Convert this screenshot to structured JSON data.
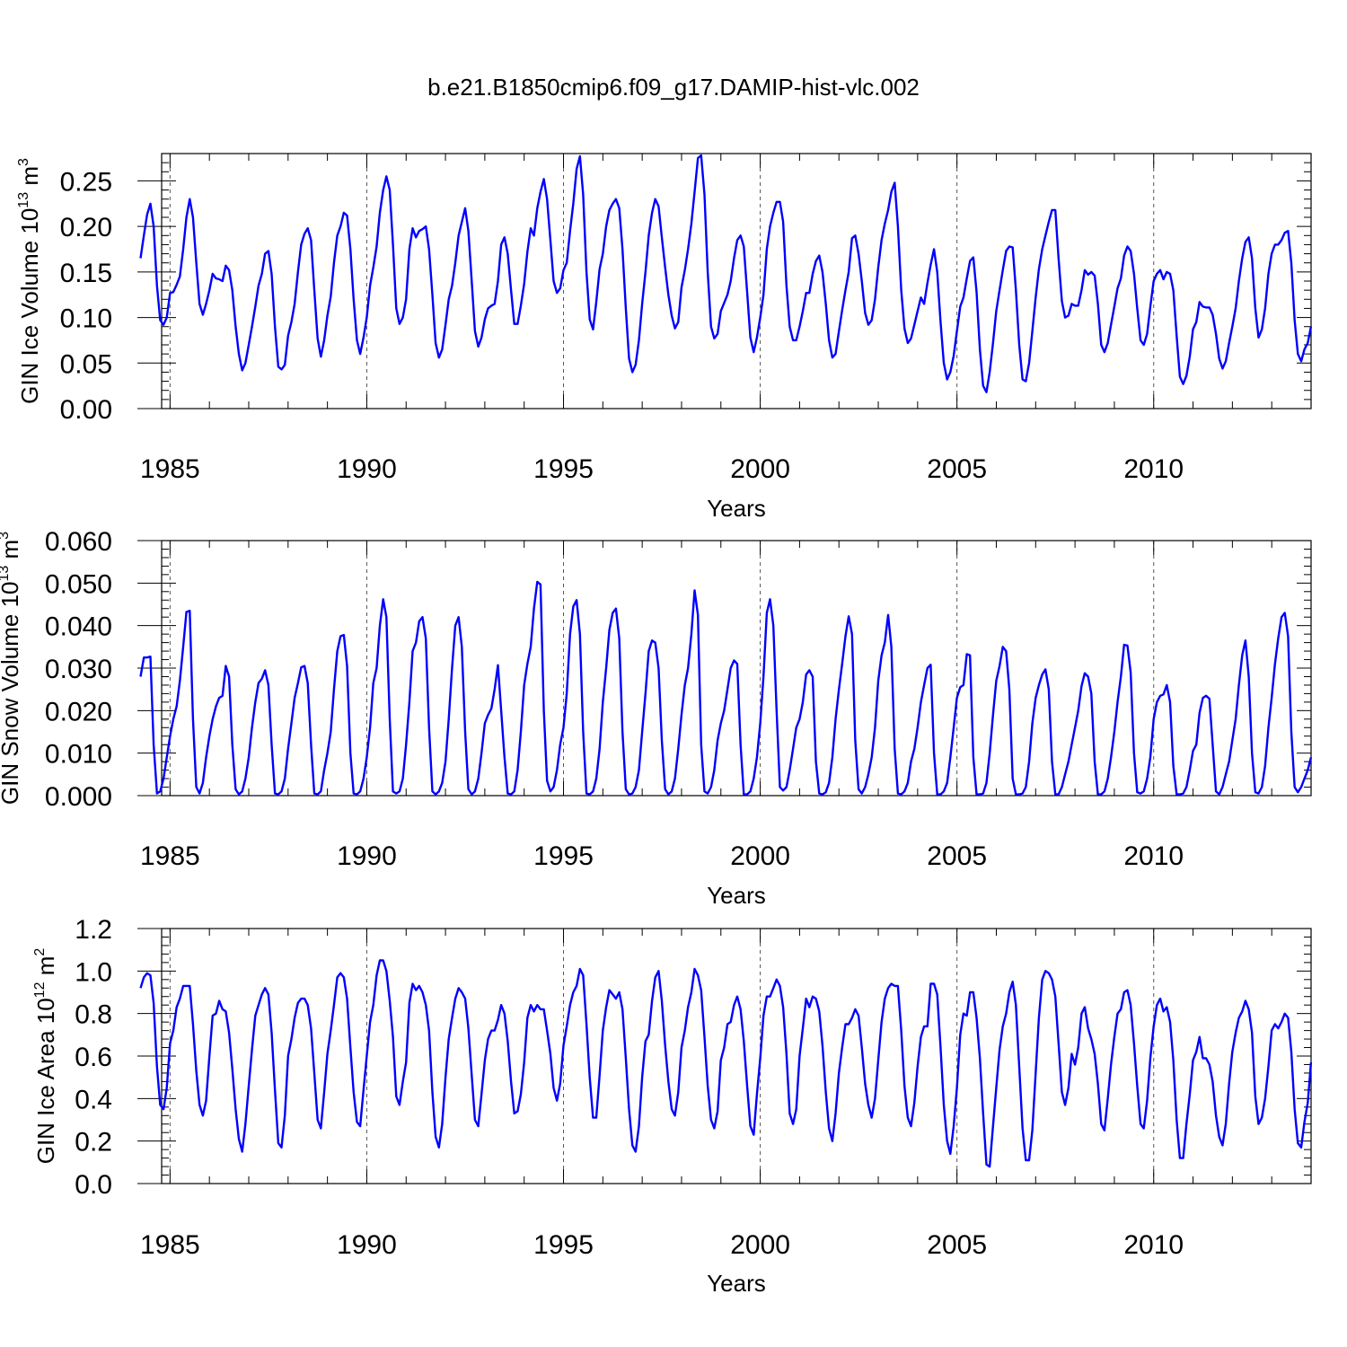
{
  "title": "b.e21.B1850cmip6.f09_g17.DAMIP-hist-vlc.002",
  "colors": {
    "series": "#0000ff",
    "axis": "#000000",
    "refline": "#555555"
  },
  "chart_data": [
    {
      "type": "line",
      "name": "ice-volume",
      "title": "b.e21.B1850cmip6.f09_g17.DAMIP-hist-vlc.002",
      "xlabel": "Years",
      "ylabel_main": "GIN Ice Volume 10",
      "ylabel_exp": "13",
      "ylabel_unit": " m",
      "ylabel_unit_exp": "3",
      "xlim": [
        1984.17,
        2014.0
      ],
      "ylim": [
        0.0,
        0.28
      ],
      "xticks": [
        1985,
        1990,
        1995,
        2000,
        2005,
        2010
      ],
      "xtick_labels": [
        "1985",
        "1990",
        "1995",
        "2000",
        "2005",
        "2010"
      ],
      "yticks": [
        0.0,
        0.05,
        0.1,
        0.15,
        0.2,
        0.25
      ],
      "ytick_labels": [
        "0.00",
        "0.05",
        "0.10",
        "0.15",
        "0.20",
        "0.25"
      ],
      "ref_lines_x": [
        1985,
        1990,
        1995,
        2000,
        2005,
        2010
      ],
      "x_start": 1984.0,
      "x_step": 0.08333,
      "values": [
        0.14,
        0.165,
        0.19,
        0.213,
        0.225,
        0.2,
        0.135,
        0.097,
        0.092,
        0.1,
        0.127,
        0.128,
        0.136,
        0.145,
        0.175,
        0.21,
        0.23,
        0.21,
        0.16,
        0.115,
        0.103,
        0.115,
        0.13,
        0.148,
        0.143,
        0.142,
        0.14,
        0.157,
        0.152,
        0.13,
        0.09,
        0.06,
        0.042,
        0.05,
        0.07,
        0.09,
        0.112,
        0.135,
        0.148,
        0.17,
        0.173,
        0.148,
        0.09,
        0.046,
        0.043,
        0.048,
        0.08,
        0.095,
        0.115,
        0.15,
        0.18,
        0.192,
        0.198,
        0.185,
        0.13,
        0.077,
        0.057,
        0.075,
        0.102,
        0.123,
        0.16,
        0.19,
        0.2,
        0.215,
        0.212,
        0.175,
        0.12,
        0.075,
        0.06,
        0.078,
        0.1,
        0.135,
        0.155,
        0.178,
        0.215,
        0.24,
        0.255,
        0.24,
        0.18,
        0.11,
        0.093,
        0.1,
        0.12,
        0.175,
        0.198,
        0.188,
        0.195,
        0.197,
        0.2,
        0.175,
        0.125,
        0.072,
        0.056,
        0.065,
        0.092,
        0.12,
        0.135,
        0.16,
        0.19,
        0.205,
        0.22,
        0.195,
        0.14,
        0.085,
        0.068,
        0.078,
        0.098,
        0.11,
        0.113,
        0.115,
        0.14,
        0.18,
        0.188,
        0.17,
        0.13,
        0.093,
        0.093,
        0.113,
        0.137,
        0.172,
        0.198,
        0.19,
        0.22,
        0.238,
        0.252,
        0.23,
        0.185,
        0.14,
        0.127,
        0.132,
        0.152,
        0.16,
        0.195,
        0.225,
        0.263,
        0.277,
        0.235,
        0.15,
        0.098,
        0.087,
        0.117,
        0.153,
        0.17,
        0.2,
        0.218,
        0.225,
        0.23,
        0.22,
        0.175,
        0.11,
        0.055,
        0.04,
        0.048,
        0.075,
        0.115,
        0.15,
        0.19,
        0.215,
        0.23,
        0.222,
        0.188,
        0.155,
        0.125,
        0.102,
        0.088,
        0.095,
        0.133,
        0.152,
        0.175,
        0.203,
        0.238,
        0.275,
        0.278,
        0.235,
        0.15,
        0.09,
        0.077,
        0.082,
        0.107,
        0.116,
        0.125,
        0.14,
        0.165,
        0.185,
        0.19,
        0.178,
        0.128,
        0.078,
        0.062,
        0.078,
        0.1,
        0.125,
        0.175,
        0.2,
        0.215,
        0.227,
        0.227,
        0.205,
        0.135,
        0.09,
        0.075,
        0.075,
        0.09,
        0.107,
        0.127,
        0.127,
        0.148,
        0.162,
        0.168,
        0.15,
        0.115,
        0.075,
        0.056,
        0.06,
        0.085,
        0.108,
        0.13,
        0.15,
        0.187,
        0.19,
        0.17,
        0.14,
        0.105,
        0.092,
        0.097,
        0.12,
        0.155,
        0.185,
        0.203,
        0.218,
        0.238,
        0.248,
        0.2,
        0.13,
        0.088,
        0.072,
        0.077,
        0.092,
        0.107,
        0.122,
        0.115,
        0.138,
        0.158,
        0.175,
        0.15,
        0.095,
        0.05,
        0.032,
        0.04,
        0.058,
        0.085,
        0.112,
        0.122,
        0.143,
        0.162,
        0.166,
        0.128,
        0.065,
        0.025,
        0.018,
        0.04,
        0.072,
        0.107,
        0.13,
        0.152,
        0.173,
        0.178,
        0.177,
        0.13,
        0.07,
        0.032,
        0.03,
        0.05,
        0.085,
        0.122,
        0.153,
        0.175,
        0.19,
        0.205,
        0.218,
        0.218,
        0.165,
        0.118,
        0.1,
        0.102,
        0.115,
        0.113,
        0.113,
        0.13,
        0.152,
        0.147,
        0.15,
        0.146,
        0.115,
        0.07,
        0.062,
        0.072,
        0.092,
        0.112,
        0.132,
        0.143,
        0.168,
        0.178,
        0.173,
        0.148,
        0.11,
        0.075,
        0.07,
        0.082,
        0.112,
        0.14,
        0.148,
        0.152,
        0.142,
        0.15,
        0.148,
        0.13,
        0.08,
        0.035,
        0.027,
        0.036,
        0.057,
        0.087,
        0.095,
        0.117,
        0.112,
        0.111,
        0.111,
        0.103,
        0.082,
        0.055,
        0.044,
        0.052,
        0.072,
        0.09,
        0.11,
        0.14,
        0.165,
        0.183,
        0.188,
        0.165,
        0.11,
        0.078,
        0.087,
        0.11,
        0.148,
        0.17,
        0.18,
        0.18,
        0.185,
        0.193,
        0.195,
        0.16,
        0.097,
        0.06,
        0.052,
        0.065,
        0.072,
        0.09
      ]
    },
    {
      "type": "line",
      "name": "snow-volume",
      "xlabel": "Years",
      "ylabel_main": "GIN Snow Volume 10",
      "ylabel_exp": "13",
      "ylabel_unit": " m",
      "ylabel_unit_exp": "3",
      "xlim": [
        1984.17,
        2014.0
      ],
      "ylim": [
        0.0,
        0.06
      ],
      "xticks": [
        1985,
        1990,
        1995,
        2000,
        2005,
        2010
      ],
      "xtick_labels": [
        "1985",
        "1990",
        "1995",
        "2000",
        "2005",
        "2010"
      ],
      "yticks": [
        0.0,
        0.01,
        0.02,
        0.03,
        0.04,
        0.05,
        0.06
      ],
      "ytick_labels": [
        "0.000",
        "0.010",
        "0.020",
        "0.030",
        "0.040",
        "0.050",
        "0.060"
      ],
      "ref_lines_x": [
        1985,
        1990,
        1995,
        2000,
        2005,
        2010
      ],
      "x_start": 1984.0,
      "x_step": 0.08333,
      "values": [
        0.02,
        0.028,
        0.0325,
        0.0325,
        0.0327,
        0.012,
        0.0005,
        0.001,
        0.004,
        0.009,
        0.014,
        0.018,
        0.021,
        0.027,
        0.035,
        0.0432,
        0.0435,
        0.018,
        0.002,
        0.0005,
        0.003,
        0.009,
        0.014,
        0.018,
        0.021,
        0.023,
        0.0235,
        0.0305,
        0.028,
        0.012,
        0.0015,
        0.0003,
        0.001,
        0.004,
        0.009,
        0.016,
        0.022,
        0.0265,
        0.0275,
        0.0295,
        0.026,
        0.012,
        0.0005,
        0.0003,
        0.001,
        0.004,
        0.011,
        0.017,
        0.023,
        0.0265,
        0.0302,
        0.0305,
        0.0265,
        0.012,
        0.0005,
        0.0003,
        0.001,
        0.006,
        0.01,
        0.015,
        0.025,
        0.034,
        0.0375,
        0.0378,
        0.0305,
        0.01,
        0.0005,
        0.0003,
        0.001,
        0.004,
        0.009,
        0.016,
        0.0265,
        0.03,
        0.04,
        0.0462,
        0.042,
        0.018,
        0.001,
        0.0005,
        0.001,
        0.004,
        0.012,
        0.022,
        0.034,
        0.036,
        0.041,
        0.042,
        0.037,
        0.016,
        0.001,
        0.0003,
        0.001,
        0.003,
        0.008,
        0.018,
        0.03,
        0.04,
        0.042,
        0.035,
        0.015,
        0.0015,
        0.0003,
        0.001,
        0.004,
        0.01,
        0.017,
        0.019,
        0.0205,
        0.025,
        0.0307,
        0.02,
        0.009,
        0.0005,
        0.0003,
        0.001,
        0.006,
        0.015,
        0.026,
        0.031,
        0.035,
        0.044,
        0.0503,
        0.0497,
        0.02,
        0.0035,
        0.001,
        0.002,
        0.006,
        0.012,
        0.016,
        0.024,
        0.038,
        0.0445,
        0.046,
        0.038,
        0.015,
        0.0005,
        0.0003,
        0.001,
        0.004,
        0.011,
        0.022,
        0.03,
        0.039,
        0.043,
        0.044,
        0.037,
        0.015,
        0.0015,
        0.0003,
        0.0005,
        0.002,
        0.006,
        0.015,
        0.024,
        0.034,
        0.0365,
        0.036,
        0.03,
        0.013,
        0.0015,
        0.0003,
        0.001,
        0.004,
        0.011,
        0.019,
        0.026,
        0.03,
        0.038,
        0.0483,
        0.0425,
        0.012,
        0.001,
        0.0005,
        0.002,
        0.006,
        0.013,
        0.017,
        0.02,
        0.025,
        0.03,
        0.0318,
        0.031,
        0.012,
        0.0003,
        0.0003,
        0.001,
        0.004,
        0.009,
        0.017,
        0.028,
        0.043,
        0.0462,
        0.04,
        0.02,
        0.002,
        0.0012,
        0.002,
        0.006,
        0.011,
        0.016,
        0.018,
        0.022,
        0.0285,
        0.0295,
        0.028,
        0.008,
        0.0005,
        0.0003,
        0.0008,
        0.003,
        0.009,
        0.018,
        0.025,
        0.031,
        0.0375,
        0.0422,
        0.038,
        0.013,
        0.0015,
        0.0005,
        0.002,
        0.005,
        0.009,
        0.016,
        0.027,
        0.033,
        0.036,
        0.0425,
        0.035,
        0.011,
        0.0005,
        0.0003,
        0.001,
        0.003,
        0.008,
        0.011,
        0.016,
        0.022,
        0.026,
        0.03,
        0.0308,
        0.01,
        0.0003,
        0.0003,
        0.001,
        0.003,
        0.009,
        0.016,
        0.023,
        0.0255,
        0.026,
        0.0333,
        0.033,
        0.009,
        0.0003,
        0.0003,
        0.0005,
        0.003,
        0.01,
        0.019,
        0.027,
        0.0305,
        0.035,
        0.034,
        0.025,
        0.004,
        0.0003,
        0.0003,
        0.0005,
        0.002,
        0.008,
        0.017,
        0.023,
        0.026,
        0.0285,
        0.0297,
        0.025,
        0.008,
        0.0003,
        0.0003,
        0.002,
        0.005,
        0.008,
        0.012,
        0.016,
        0.02,
        0.0258,
        0.0288,
        0.028,
        0.024,
        0.008,
        0.0003,
        0.0003,
        0.001,
        0.004,
        0.009,
        0.015,
        0.022,
        0.028,
        0.0355,
        0.0353,
        0.029,
        0.01,
        0.0008,
        0.0005,
        0.001,
        0.004,
        0.009,
        0.018,
        0.022,
        0.0235,
        0.0238,
        0.026,
        0.022,
        0.007,
        0.0003,
        0.0003,
        0.0005,
        0.002,
        0.006,
        0.0105,
        0.012,
        0.0195,
        0.023,
        0.0235,
        0.0228,
        0.012,
        0.001,
        0.0003,
        0.002,
        0.005,
        0.008,
        0.013,
        0.018,
        0.026,
        0.033,
        0.0365,
        0.028,
        0.01,
        0.0008,
        0.0005,
        0.002,
        0.007,
        0.016,
        0.023,
        0.031,
        0.037,
        0.042,
        0.043,
        0.0375,
        0.015,
        0.002,
        0.0008,
        0.002,
        0.004,
        0.006,
        0.009
      ]
    },
    {
      "type": "line",
      "name": "ice-area",
      "xlabel": "Years",
      "ylabel_main": "GIN Ice Area 10",
      "ylabel_exp": "12",
      "ylabel_unit": " m",
      "ylabel_unit_exp": "2",
      "xlim": [
        1984.17,
        2014.0
      ],
      "ylim": [
        0.0,
        1.2
      ],
      "xticks": [
        1985,
        1990,
        1995,
        2000,
        2005,
        2010
      ],
      "xtick_labels": [
        "1985",
        "1990",
        "1995",
        "2000",
        "2005",
        "2010"
      ],
      "yticks": [
        0.0,
        0.2,
        0.4,
        0.6,
        0.8,
        1.0,
        1.2
      ],
      "ytick_labels": [
        "0.0",
        "0.2",
        "0.4",
        "0.6",
        "0.8",
        "1.0",
        "1.2"
      ],
      "ref_lines_x": [
        1985,
        1990,
        1995,
        2000,
        2005,
        2010
      ],
      "x_start": 1984.0,
      "x_step": 0.08333,
      "values": [
        0.85,
        0.92,
        0.97,
        0.99,
        0.98,
        0.85,
        0.55,
        0.37,
        0.35,
        0.45,
        0.66,
        0.72,
        0.83,
        0.87,
        0.93,
        0.93,
        0.93,
        0.75,
        0.53,
        0.37,
        0.32,
        0.39,
        0.6,
        0.79,
        0.8,
        0.86,
        0.82,
        0.81,
        0.71,
        0.54,
        0.35,
        0.21,
        0.15,
        0.28,
        0.46,
        0.63,
        0.79,
        0.84,
        0.89,
        0.92,
        0.89,
        0.71,
        0.44,
        0.19,
        0.17,
        0.32,
        0.6,
        0.68,
        0.78,
        0.85,
        0.87,
        0.87,
        0.84,
        0.73,
        0.52,
        0.3,
        0.26,
        0.43,
        0.61,
        0.72,
        0.84,
        0.97,
        0.99,
        0.97,
        0.87,
        0.64,
        0.43,
        0.29,
        0.27,
        0.44,
        0.6,
        0.76,
        0.84,
        0.98,
        1.05,
        1.05,
        1.0,
        0.86,
        0.69,
        0.41,
        0.37,
        0.48,
        0.57,
        0.85,
        0.94,
        0.91,
        0.93,
        0.9,
        0.84,
        0.72,
        0.43,
        0.22,
        0.17,
        0.28,
        0.5,
        0.68,
        0.78,
        0.87,
        0.92,
        0.9,
        0.87,
        0.73,
        0.51,
        0.3,
        0.27,
        0.42,
        0.58,
        0.68,
        0.72,
        0.72,
        0.77,
        0.84,
        0.8,
        0.67,
        0.48,
        0.33,
        0.34,
        0.42,
        0.57,
        0.78,
        0.84,
        0.81,
        0.84,
        0.82,
        0.82,
        0.72,
        0.61,
        0.45,
        0.39,
        0.47,
        0.65,
        0.74,
        0.84,
        0.9,
        0.93,
        1.01,
        0.98,
        0.75,
        0.5,
        0.31,
        0.31,
        0.51,
        0.72,
        0.83,
        0.91,
        0.89,
        0.87,
        0.9,
        0.82,
        0.59,
        0.35,
        0.18,
        0.15,
        0.27,
        0.5,
        0.67,
        0.7,
        0.86,
        0.97,
        1.0,
        0.86,
        0.65,
        0.48,
        0.35,
        0.32,
        0.43,
        0.64,
        0.72,
        0.83,
        0.9,
        1.01,
        0.98,
        0.91,
        0.69,
        0.46,
        0.3,
        0.26,
        0.34,
        0.58,
        0.64,
        0.75,
        0.76,
        0.84,
        0.88,
        0.82,
        0.67,
        0.46,
        0.27,
        0.23,
        0.42,
        0.59,
        0.79,
        0.88,
        0.88,
        0.92,
        0.96,
        0.93,
        0.83,
        0.61,
        0.33,
        0.28,
        0.35,
        0.6,
        0.73,
        0.87,
        0.83,
        0.88,
        0.87,
        0.81,
        0.65,
        0.43,
        0.26,
        0.2,
        0.33,
        0.52,
        0.64,
        0.75,
        0.75,
        0.78,
        0.82,
        0.79,
        0.64,
        0.47,
        0.37,
        0.31,
        0.4,
        0.58,
        0.76,
        0.87,
        0.92,
        0.94,
        0.93,
        0.93,
        0.72,
        0.46,
        0.31,
        0.27,
        0.38,
        0.55,
        0.69,
        0.74,
        0.74,
        0.94,
        0.94,
        0.89,
        0.64,
        0.37,
        0.2,
        0.14,
        0.27,
        0.45,
        0.7,
        0.8,
        0.79,
        0.9,
        0.9,
        0.78,
        0.59,
        0.33,
        0.09,
        0.08,
        0.27,
        0.45,
        0.63,
        0.74,
        0.8,
        0.9,
        0.95,
        0.84,
        0.55,
        0.26,
        0.11,
        0.11,
        0.25,
        0.52,
        0.78,
        0.96,
        1.0,
        0.99,
        0.96,
        0.88,
        0.66,
        0.43,
        0.37,
        0.45,
        0.61,
        0.56,
        0.64,
        0.8,
        0.83,
        0.73,
        0.68,
        0.61,
        0.47,
        0.28,
        0.25,
        0.4,
        0.56,
        0.69,
        0.8,
        0.82,
        0.9,
        0.91,
        0.84,
        0.66,
        0.46,
        0.28,
        0.26,
        0.39,
        0.59,
        0.74,
        0.84,
        0.87,
        0.81,
        0.83,
        0.76,
        0.58,
        0.3,
        0.12,
        0.12,
        0.28,
        0.42,
        0.58,
        0.62,
        0.69,
        0.59,
        0.59,
        0.56,
        0.48,
        0.32,
        0.22,
        0.18,
        0.28,
        0.47,
        0.62,
        0.71,
        0.78,
        0.81,
        0.86,
        0.82,
        0.71,
        0.41,
        0.28,
        0.31,
        0.4,
        0.55,
        0.72,
        0.75,
        0.73,
        0.76,
        0.8,
        0.78,
        0.62,
        0.35,
        0.19,
        0.17,
        0.29,
        0.38,
        0.57
      ]
    }
  ]
}
